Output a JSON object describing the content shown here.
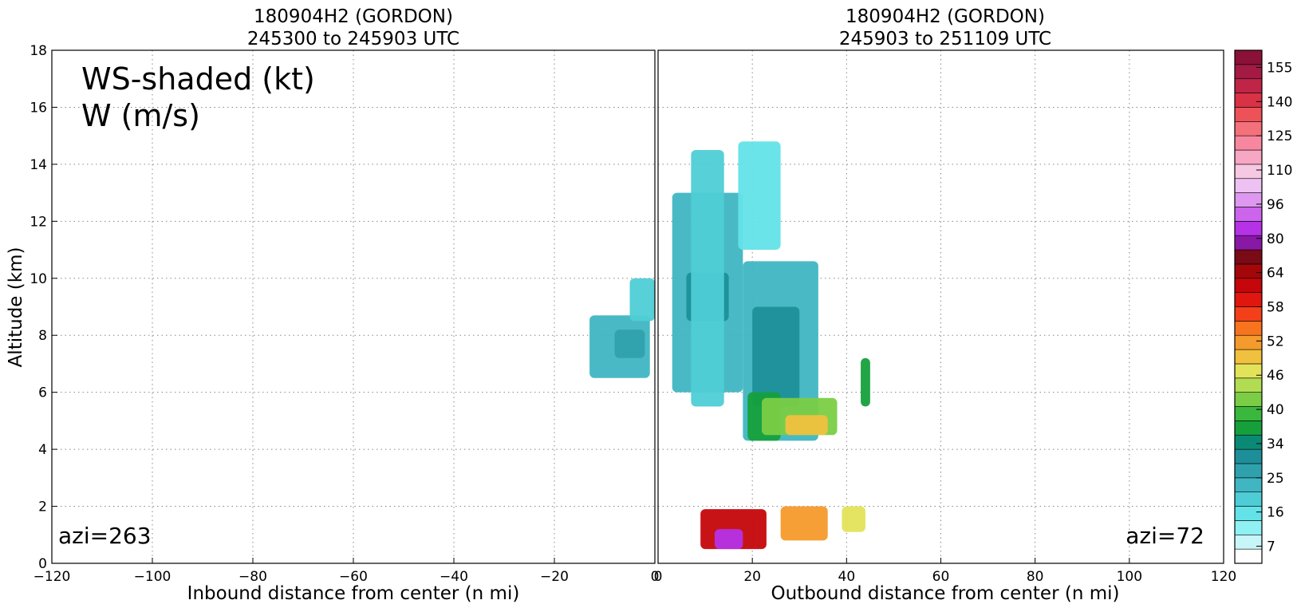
{
  "chart_data": [
    {
      "type": "heatmap",
      "panel": "left",
      "title_line1": "180904H2 (GORDON)",
      "title_line2": "245300 to 245903 UTC",
      "xlabel": "Inbound distance from center (n mi)",
      "ylabel": "Altitude (km)",
      "xlim": [
        -120,
        0
      ],
      "ylim": [
        0,
        18
      ],
      "xticks": [
        "−120",
        "−100",
        "−80",
        "−60",
        "−40",
        "−20",
        "0"
      ],
      "yticks": [
        "0",
        "2",
        "4",
        "6",
        "8",
        "10",
        "12",
        "14",
        "16",
        "18"
      ],
      "grid": true,
      "legend_line1": "WS-shaded (kt)",
      "legend_line2": "W (m/s)",
      "azimuth_label": "azi=263",
      "ws_regions": [
        {
          "x": [
            -13,
            -1
          ],
          "y": [
            6.5,
            8.7
          ],
          "ws": 16
        },
        {
          "x": [
            -5,
            0
          ],
          "y": [
            8.5,
            10
          ],
          "ws": 12
        },
        {
          "x": [
            -8,
            -2
          ],
          "y": [
            7.2,
            8.2
          ],
          "ws": 22
        }
      ]
    },
    {
      "type": "heatmap",
      "panel": "right",
      "title_line1": "180904H2 (GORDON)",
      "title_line2": "245903 to 251109 UTC",
      "xlabel": "Outbound distance from center (n mi)",
      "xlim": [
        0,
        120
      ],
      "ylim": [
        0,
        18
      ],
      "xticks": [
        "0",
        "20",
        "40",
        "60",
        "80",
        "100",
        "120"
      ],
      "grid": true,
      "azimuth_label": "azi=72",
      "ws_regions": [
        {
          "x": [
            3,
            18
          ],
          "y": [
            6,
            13
          ],
          "ws": 16
        },
        {
          "x": [
            6,
            15
          ],
          "y": [
            8.5,
            10.2
          ],
          "ws": 25
        },
        {
          "x": [
            7,
            14
          ],
          "y": [
            5.5,
            14.5
          ],
          "ws": 12
        },
        {
          "x": [
            18,
            34
          ],
          "y": [
            4.3,
            10.6
          ],
          "ws": 16
        },
        {
          "x": [
            20,
            30
          ],
          "y": [
            5.5,
            9
          ],
          "ws": 25
        },
        {
          "x": [
            19,
            26
          ],
          "y": [
            4.3,
            6
          ],
          "ws": 31
        },
        {
          "x": [
            22,
            38
          ],
          "y": [
            4.5,
            5.8
          ],
          "ws": 37
        },
        {
          "x": [
            27,
            36
          ],
          "y": [
            4.5,
            5.2
          ],
          "ws": 46
        },
        {
          "x": [
            43,
            45
          ],
          "y": [
            5.5,
            7.2
          ],
          "ws": 34
        },
        {
          "x": [
            17,
            26
          ],
          "y": [
            11,
            14.8
          ],
          "ws": 10
        },
        {
          "x": [
            9,
            23
          ],
          "y": [
            0.5,
            1.9
          ],
          "ws": 58
        },
        {
          "x": [
            12,
            18
          ],
          "y": [
            0.5,
            1.2
          ],
          "ws": 75
        },
        {
          "x": [
            26,
            36
          ],
          "y": [
            0.8,
            2
          ],
          "ws": 48
        },
        {
          "x": [
            39,
            44
          ],
          "y": [
            1.1,
            2
          ],
          "ws": 44
        }
      ]
    }
  ],
  "colorbar": {
    "ticks": [
      "7",
      "16",
      "25",
      "34",
      "40",
      "46",
      "52",
      "58",
      "64",
      "80",
      "96",
      "110",
      "125",
      "140",
      "155"
    ],
    "colors": [
      "#ffffff",
      "#c7f6f8",
      "#8ff1f3",
      "#63e3e8",
      "#4fcdd6",
      "#3fb6c2",
      "#2fa1ad",
      "#1d8f99",
      "#0a8a74",
      "#16a03c",
      "#39b83d",
      "#7acd45",
      "#b2dd52",
      "#e3e35a",
      "#f0c13e",
      "#f59a2c",
      "#f8731d",
      "#f3401a",
      "#e1160f",
      "#c5060a",
      "#a4070a",
      "#7a0a16",
      "#8a18a6",
      "#b532e6",
      "#cc64ec",
      "#de98f0",
      "#eec1f3",
      "#f6c8e2",
      "#f7a6c3",
      "#f7879f",
      "#f4707a",
      "#ee5259",
      "#d93146",
      "#bf2546",
      "#a31b45",
      "#8b1138"
    ]
  }
}
